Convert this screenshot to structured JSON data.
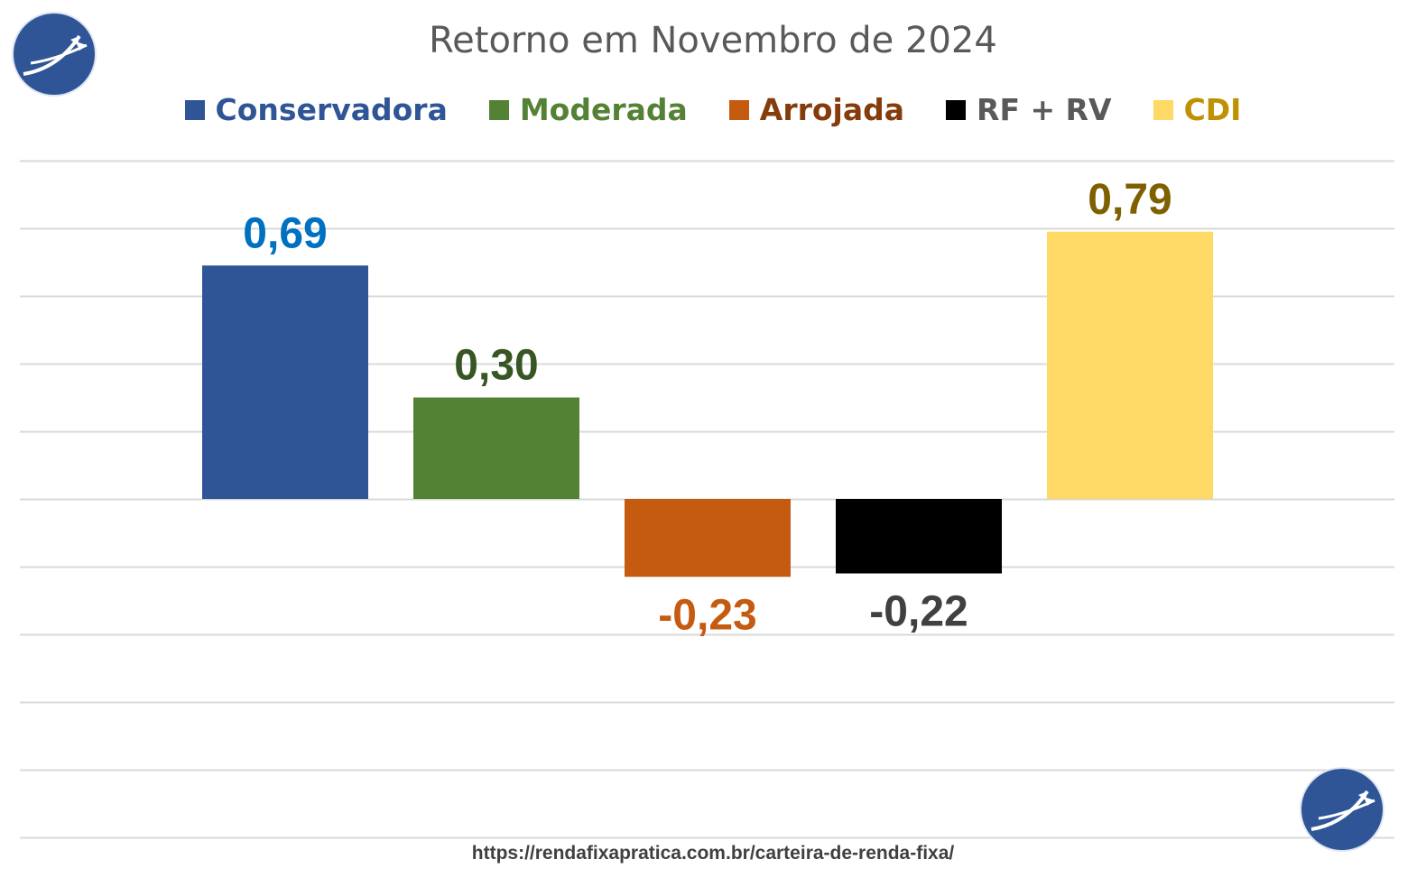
{
  "chart_data": {
    "type": "bar",
    "title": "Retorno em Novembro de 2024",
    "categories": [
      "Conservadora",
      "Moderada",
      "Arrojada",
      "RF + RV",
      "CDI"
    ],
    "values": [
      0.69,
      0.3,
      -0.23,
      -0.22,
      0.79
    ],
    "data_labels": [
      "0,69",
      "0,30",
      "-0,23",
      "-0,22",
      "0,79"
    ],
    "colors": [
      "#2F5597",
      "#548235",
      "#C55A11",
      "#000000",
      "#FFD966"
    ],
    "label_colors": [
      "#0070C0",
      "#375623",
      "#C55A11",
      "#404040",
      "#7F6000"
    ],
    "legend_text_colors": [
      "#2F5597",
      "#548235",
      "#843C0C",
      "#595959",
      "#BF9000"
    ],
    "ylim": [
      -1.0,
      1.0
    ],
    "grid": true,
    "legend_position": "top",
    "xlabel": "",
    "ylabel": ""
  },
  "footer_url": "https://rendafixapratica.com.br/carteira-de-renda-fixa/"
}
